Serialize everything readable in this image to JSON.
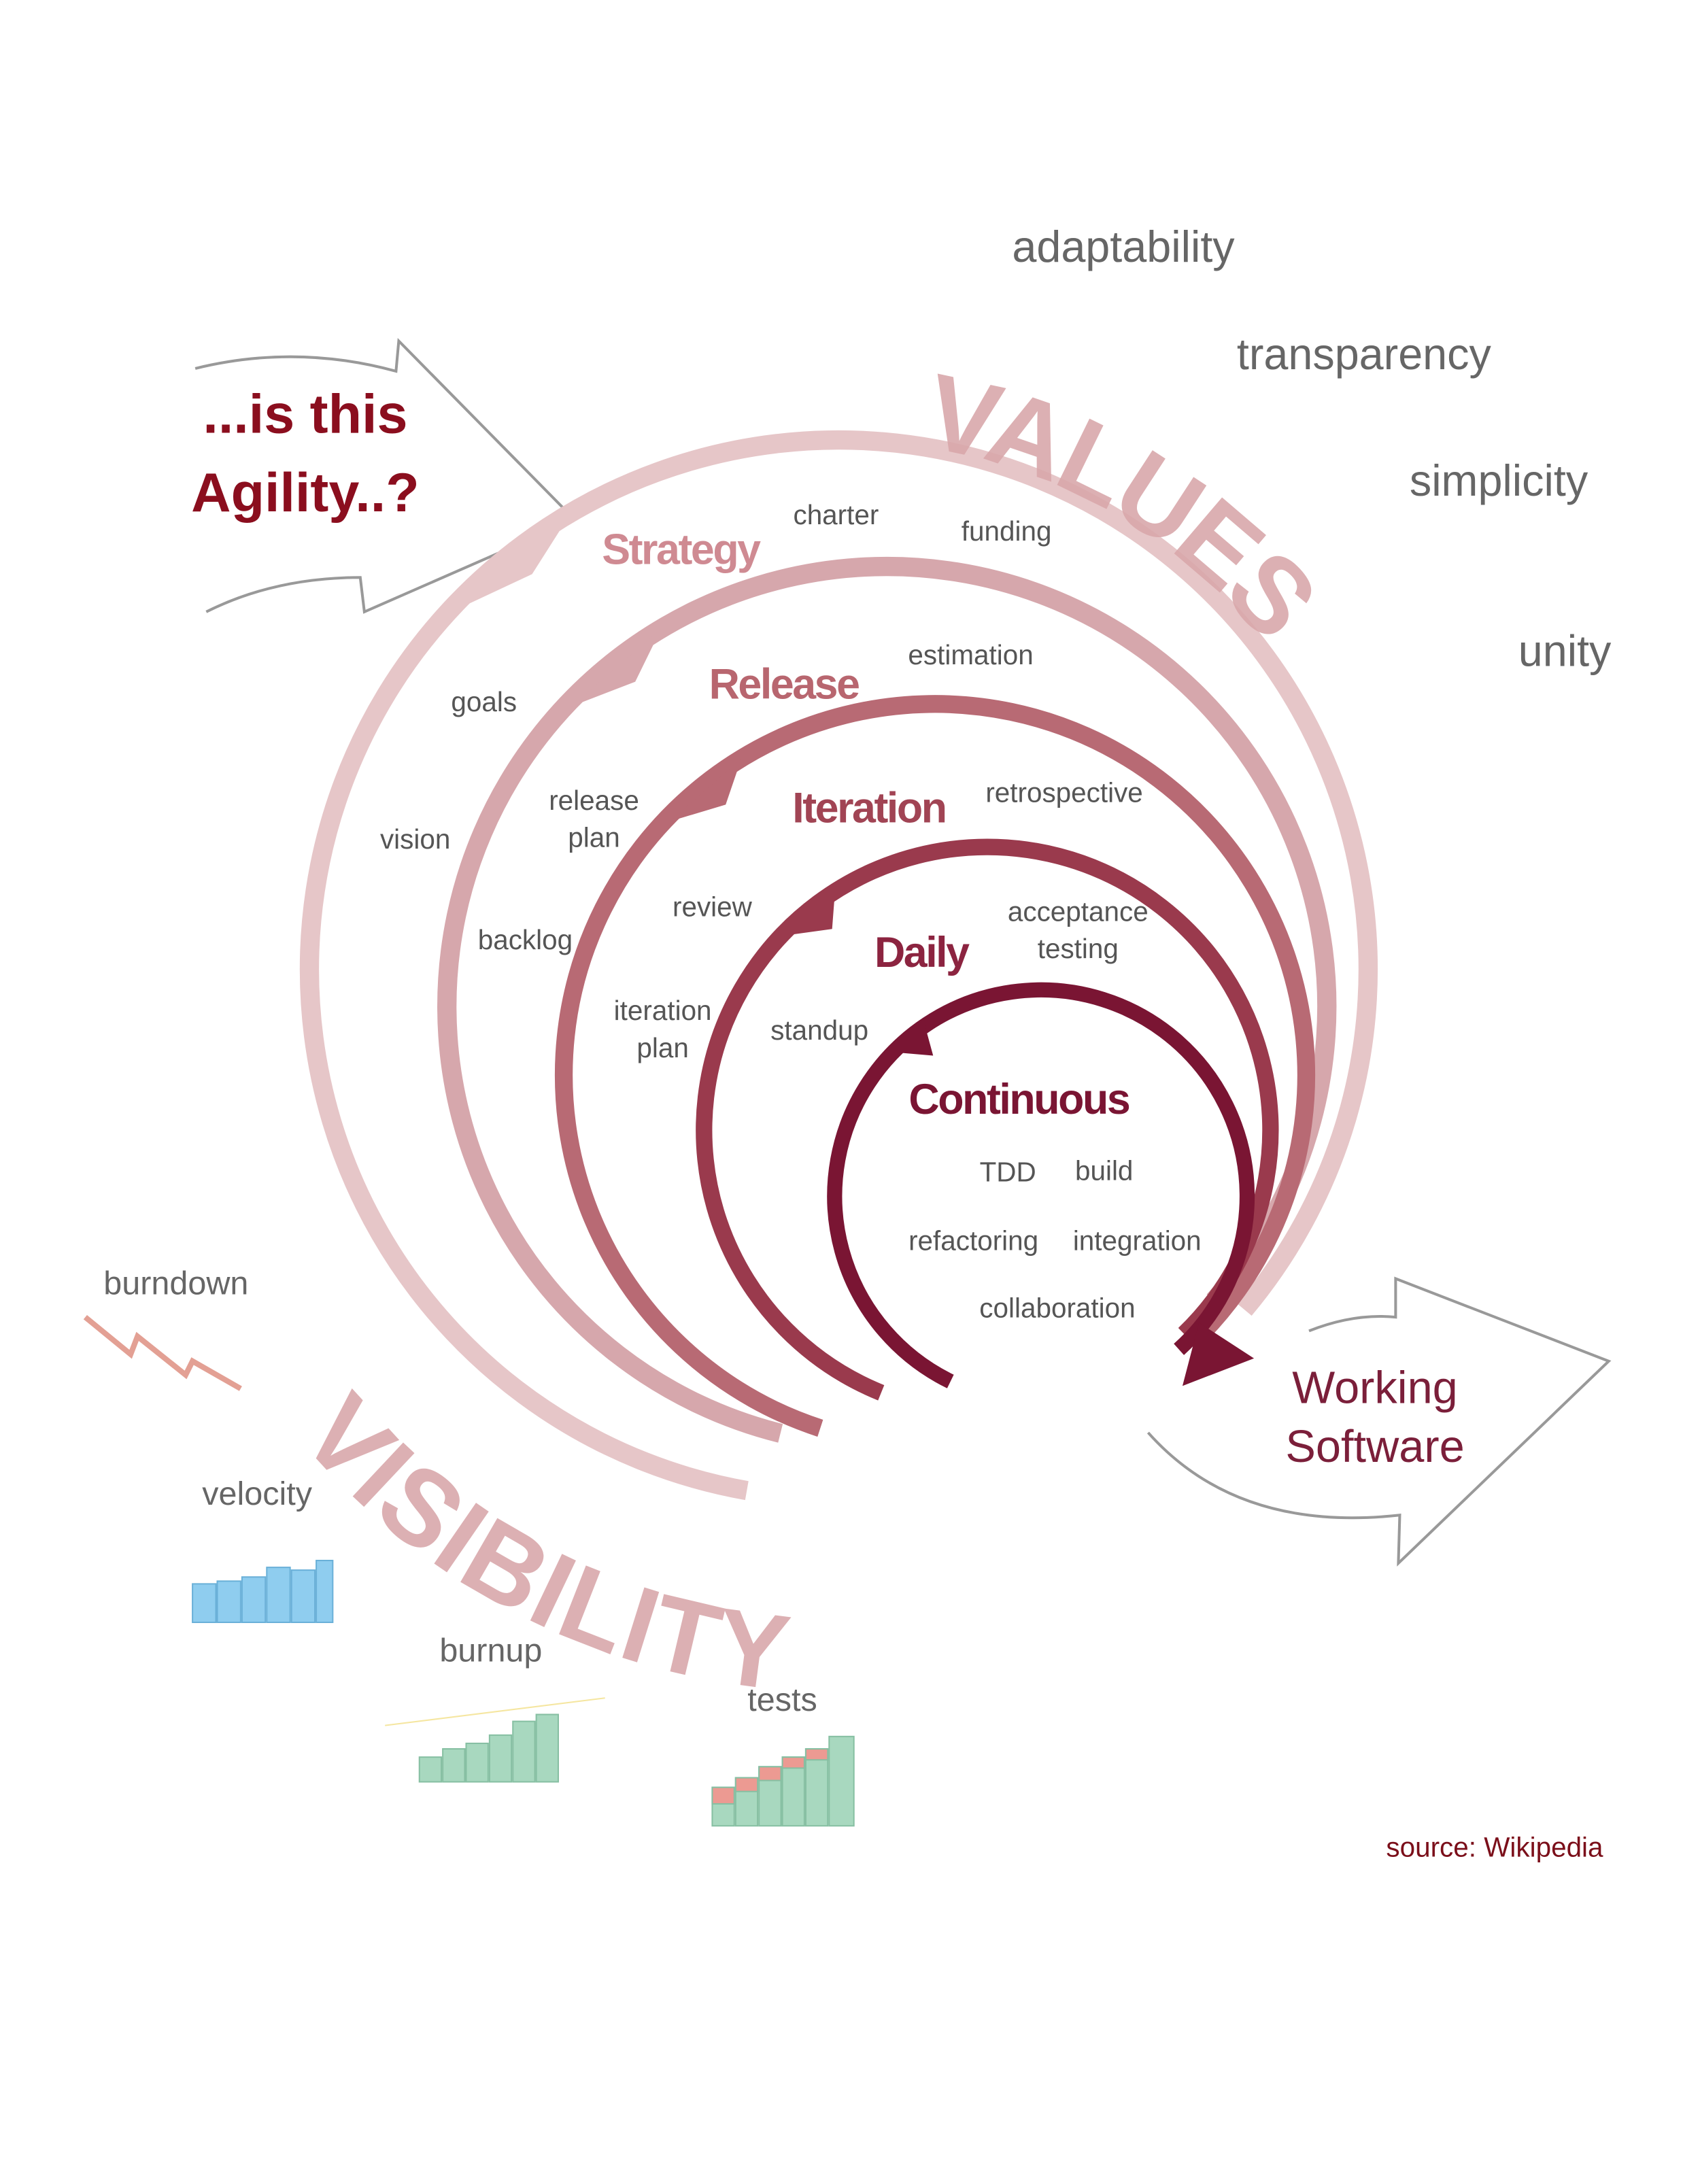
{
  "title": [
    "...is this",
    "Agility..?"
  ],
  "values": {
    "label": "VALUES",
    "items": [
      "adaptability",
      "transparency",
      "simplicity",
      "unity"
    ]
  },
  "visibility": {
    "label": "VISIBILITY",
    "items": [
      "burndown",
      "velocity",
      "burnup",
      "tests"
    ]
  },
  "cycles": [
    {
      "label": "Strategy",
      "items": [
        "charter",
        "funding",
        "goals",
        "vision"
      ]
    },
    {
      "label": "Release",
      "items": [
        "estimation",
        [
          "release",
          "plan"
        ],
        "backlog"
      ]
    },
    {
      "label": "Iteration",
      "items": [
        "retrospective",
        "review",
        [
          "iteration",
          "plan"
        ]
      ]
    },
    {
      "label": "Daily",
      "items": [
        [
          "acceptance",
          "testing"
        ],
        "standup"
      ]
    },
    {
      "label": "Continuous",
      "items": [
        "TDD",
        "build",
        "refactoring",
        "integration",
        "collaboration"
      ]
    }
  ],
  "output": [
    "Working",
    "Software"
  ],
  "source": "source: Wikipedia"
}
